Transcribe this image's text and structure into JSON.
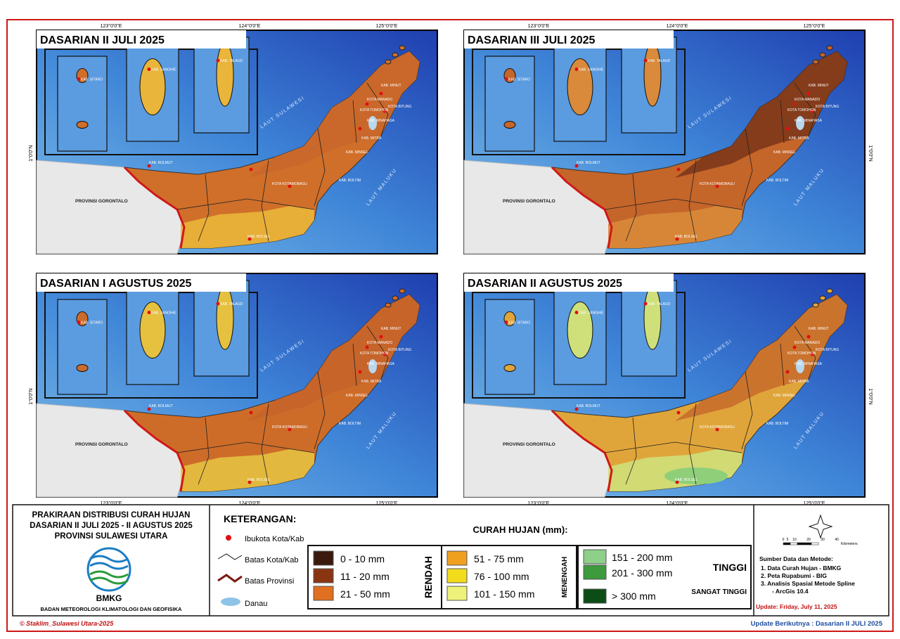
{
  "maps": [
    {
      "title": "DASARIAN II JULI 2025"
    },
    {
      "title": "DASARIAN III JULI 2025"
    },
    {
      "title": "DASARIAN I AGUSTUS 2025"
    },
    {
      "title": "DASARIAN II AGUSTUS 2025"
    }
  ],
  "map_labels": {
    "longitudes": [
      "123°0'0\"E",
      "124°0'0\"E",
      "125°0'0\"E"
    ],
    "latitude": "1°0'0\"N",
    "province": "PROVINSI GORONTALO",
    "sea_north": "LAUT SULAWESI",
    "sea_east": "LAUT MALUKU",
    "insets": [
      "KAB. SITARO",
      "KAB. SANGIHE",
      "KAB. TALAUD"
    ],
    "districts": [
      "KAB. BOLMUT",
      "KOTA KOTAMOBAGU",
      "KAB. BOLTIM",
      "KAB. BOLSEL",
      "KAB. MINSEL",
      "KAB. MITRA",
      "KAB. MINAHASA",
      "KOTA MANADO",
      "KAB. MINUT",
      "KOTA BITUNG",
      "KOTA TOMOHON"
    ]
  },
  "title_block": {
    "lines": [
      "PRAKIRAAN DISTRIBUSI CURAH HUJAN",
      "DASARIAN II JULI 2025 - II AGUSTUS 2025",
      "PROVINSI SULAWESI UTARA"
    ],
    "logo_text": "BMKG",
    "agency": "BADAN METEOROLOGI KLIMATOLOGI DAN GEOFISIKA"
  },
  "legend": {
    "title": "KETERANGAN:",
    "symbols": [
      "Ibukota Kota/Kab",
      "Batas Kota/Kab",
      "Batas Provinsi",
      "Danau"
    ],
    "rain_title": "CURAH HUJAN (mm):",
    "groups": [
      {
        "name": "RENDAH",
        "classes": [
          {
            "label": "0 - 10 mm",
            "color": "#3a1a0c"
          },
          {
            "label": "11 - 20 mm",
            "color": "#8a3512"
          },
          {
            "label": "21 - 50 mm",
            "color": "#e07020"
          }
        ]
      },
      {
        "name": "MENENGAH",
        "classes": [
          {
            "label": "51 - 75 mm",
            "color": "#f0a020"
          },
          {
            "label": "76 - 100 mm",
            "color": "#f2dc1c"
          },
          {
            "label": "101 - 150 mm",
            "color": "#eef27a"
          }
        ]
      },
      {
        "name": "TINGGI",
        "classes": [
          {
            "label": "151 - 200 mm",
            "color": "#8ed08a"
          },
          {
            "label": "201 - 300 mm",
            "color": "#3d9a3d"
          }
        ]
      },
      {
        "name": "SANGAT TINGGI",
        "classes": [
          {
            "label": "> 300 mm",
            "color": "#0b4d14"
          }
        ]
      }
    ]
  },
  "scale": {
    "ticks": [
      "0",
      "5",
      "10",
      "20",
      "30",
      "40"
    ],
    "unit": "Kilometers"
  },
  "sources": {
    "title": "Sumber Data dan Metode:",
    "items": [
      "1. Data Curah Hujan - BMKG",
      "2. Peta Rupabumi - BIG",
      "3. Analisis Spasial Metode Spline",
      "- ArcGis 10.4"
    ],
    "update": "Update: Friday, July 11, 2025"
  },
  "footer": {
    "copyright": "© Staklim_Sulawesi Utara-2025",
    "next_update": "Update Berikutnya : Dasarian II JULI 2025"
  }
}
